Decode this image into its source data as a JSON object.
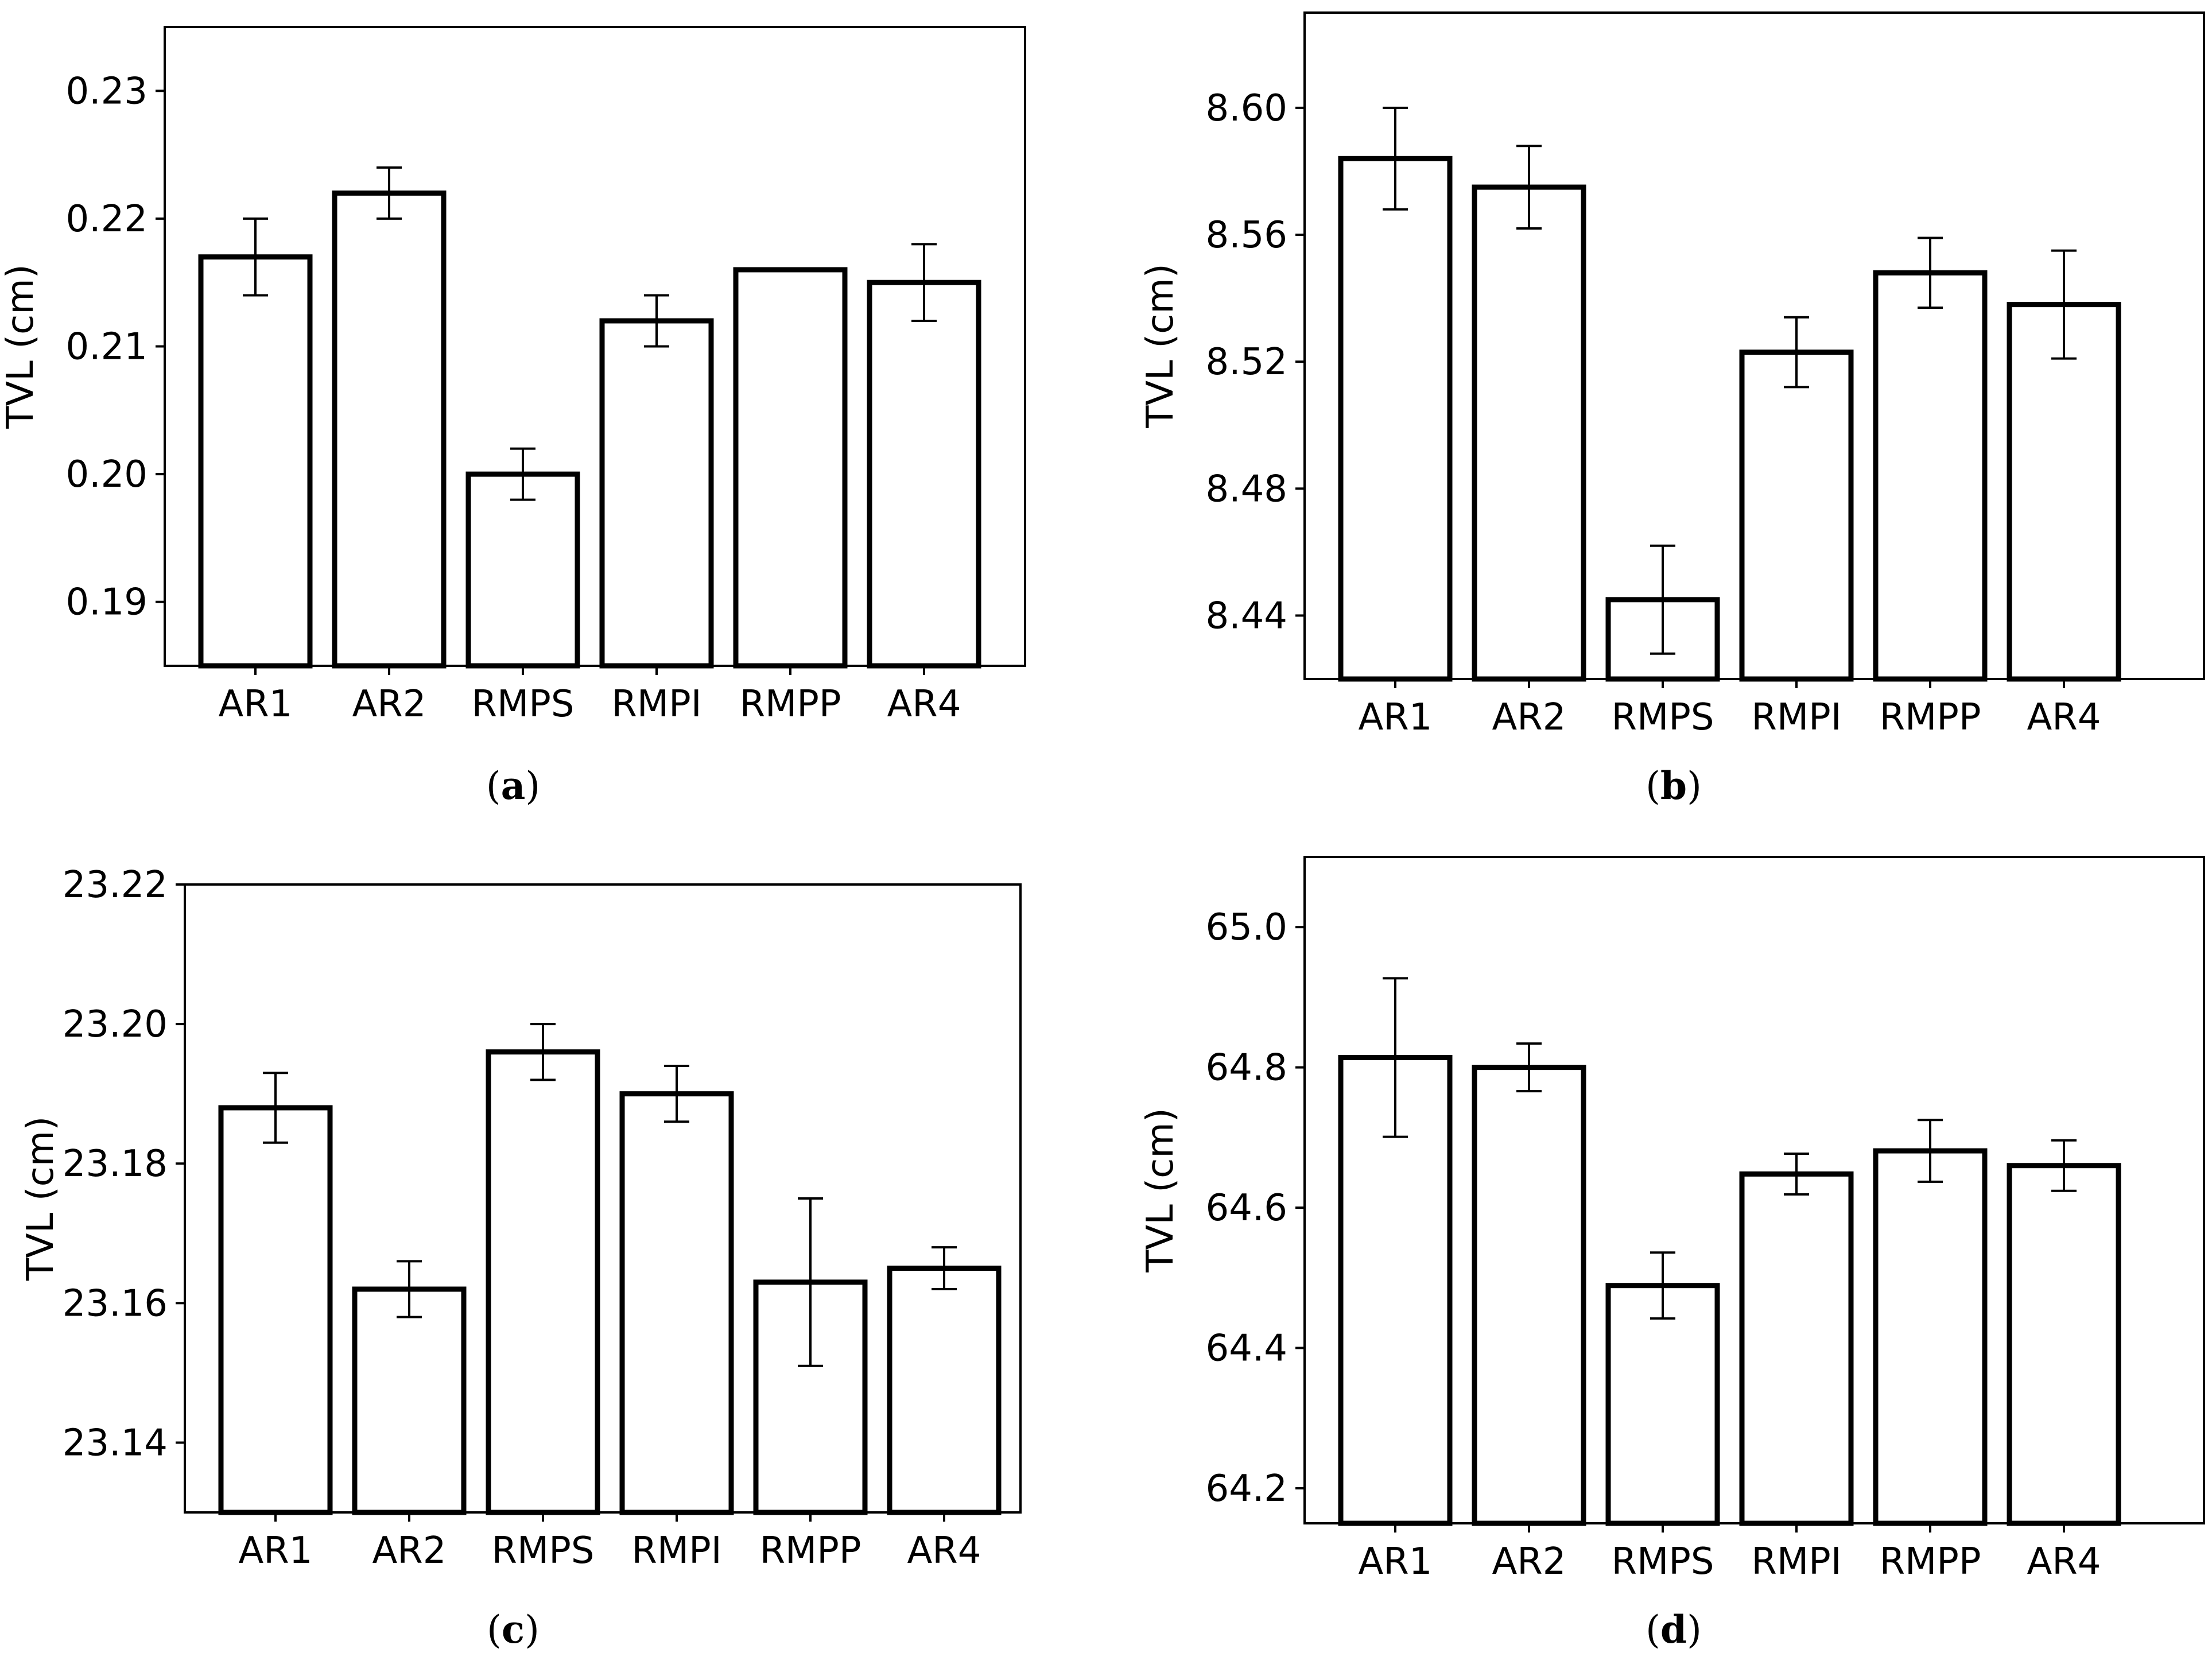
{
  "chart_data": [
    {
      "type": "bar",
      "panel": "a",
      "caption_letter": "a",
      "categories": [
        "AR1",
        "AR2",
        "RMPS",
        "RMPI",
        "RMPP",
        "AR4"
      ],
      "values": [
        0.217,
        0.222,
        0.2,
        0.212,
        0.216,
        0.215
      ],
      "errors": [
        0.003,
        0.002,
        0.002,
        0.002,
        0.0,
        0.003
      ],
      "ylabel": "TVL (cm)",
      "xlabel": "",
      "ylim": [
        0.185,
        0.235
      ],
      "yticks": [
        0.19,
        0.2,
        0.21,
        0.22,
        0.23
      ],
      "ytick_labels": [
        "0.19",
        "0.20",
        "0.21",
        "0.22",
        "0.23"
      ]
    },
    {
      "type": "bar",
      "panel": "b",
      "caption_letter": "b",
      "categories": [
        "AR1",
        "AR2",
        "RMPS",
        "RMPI",
        "RMPP",
        "AR4"
      ],
      "values": [
        8.584,
        8.575,
        8.445,
        8.523,
        8.548,
        8.538
      ],
      "errors": [
        0.016,
        0.013,
        0.017,
        0.011,
        0.011,
        0.017
      ],
      "ylabel": "TVL (cm)",
      "xlabel": "",
      "ylim": [
        8.42,
        8.63
      ],
      "yticks": [
        8.44,
        8.48,
        8.52,
        8.56,
        8.6
      ],
      "ytick_labels": [
        "8.44",
        "8.48",
        "8.52",
        "8.56",
        "8.60"
      ]
    },
    {
      "type": "bar",
      "panel": "c",
      "caption_letter": "c",
      "categories": [
        "AR1",
        "AR2",
        "RMPS",
        "RMPI",
        "RMPP",
        "AR4"
      ],
      "values": [
        23.188,
        23.162,
        23.196,
        23.19,
        23.163,
        23.165
      ],
      "errors": [
        0.005,
        0.004,
        0.004,
        0.004,
        0.012,
        0.003
      ],
      "ylabel": "TVL (cm)",
      "xlabel": "",
      "ylim": [
        23.13,
        23.22
      ],
      "yticks": [
        23.14,
        23.16,
        23.18,
        23.2,
        23.22
      ],
      "ytick_labels": [
        "23.14",
        "23.16",
        "23.18",
        "23.20",
        "23.22"
      ]
    },
    {
      "type": "bar",
      "panel": "d",
      "caption_letter": "d",
      "categories": [
        "AR1",
        "AR2",
        "RMPS",
        "RMPI",
        "RMPP",
        "AR4"
      ],
      "values": [
        64.814,
        64.8,
        64.489,
        64.648,
        64.681,
        64.66
      ],
      "errors": [
        0.113,
        0.034,
        0.047,
        0.029,
        0.044,
        0.036
      ],
      "ylabel": "TVL (cm)",
      "xlabel": "",
      "ylim": [
        64.15,
        65.1
      ],
      "yticks": [
        64.2,
        64.4,
        64.6,
        64.8,
        65.0
      ],
      "ytick_labels": [
        "64.2",
        "64.4",
        "64.6",
        "64.8",
        "65.0"
      ]
    }
  ]
}
